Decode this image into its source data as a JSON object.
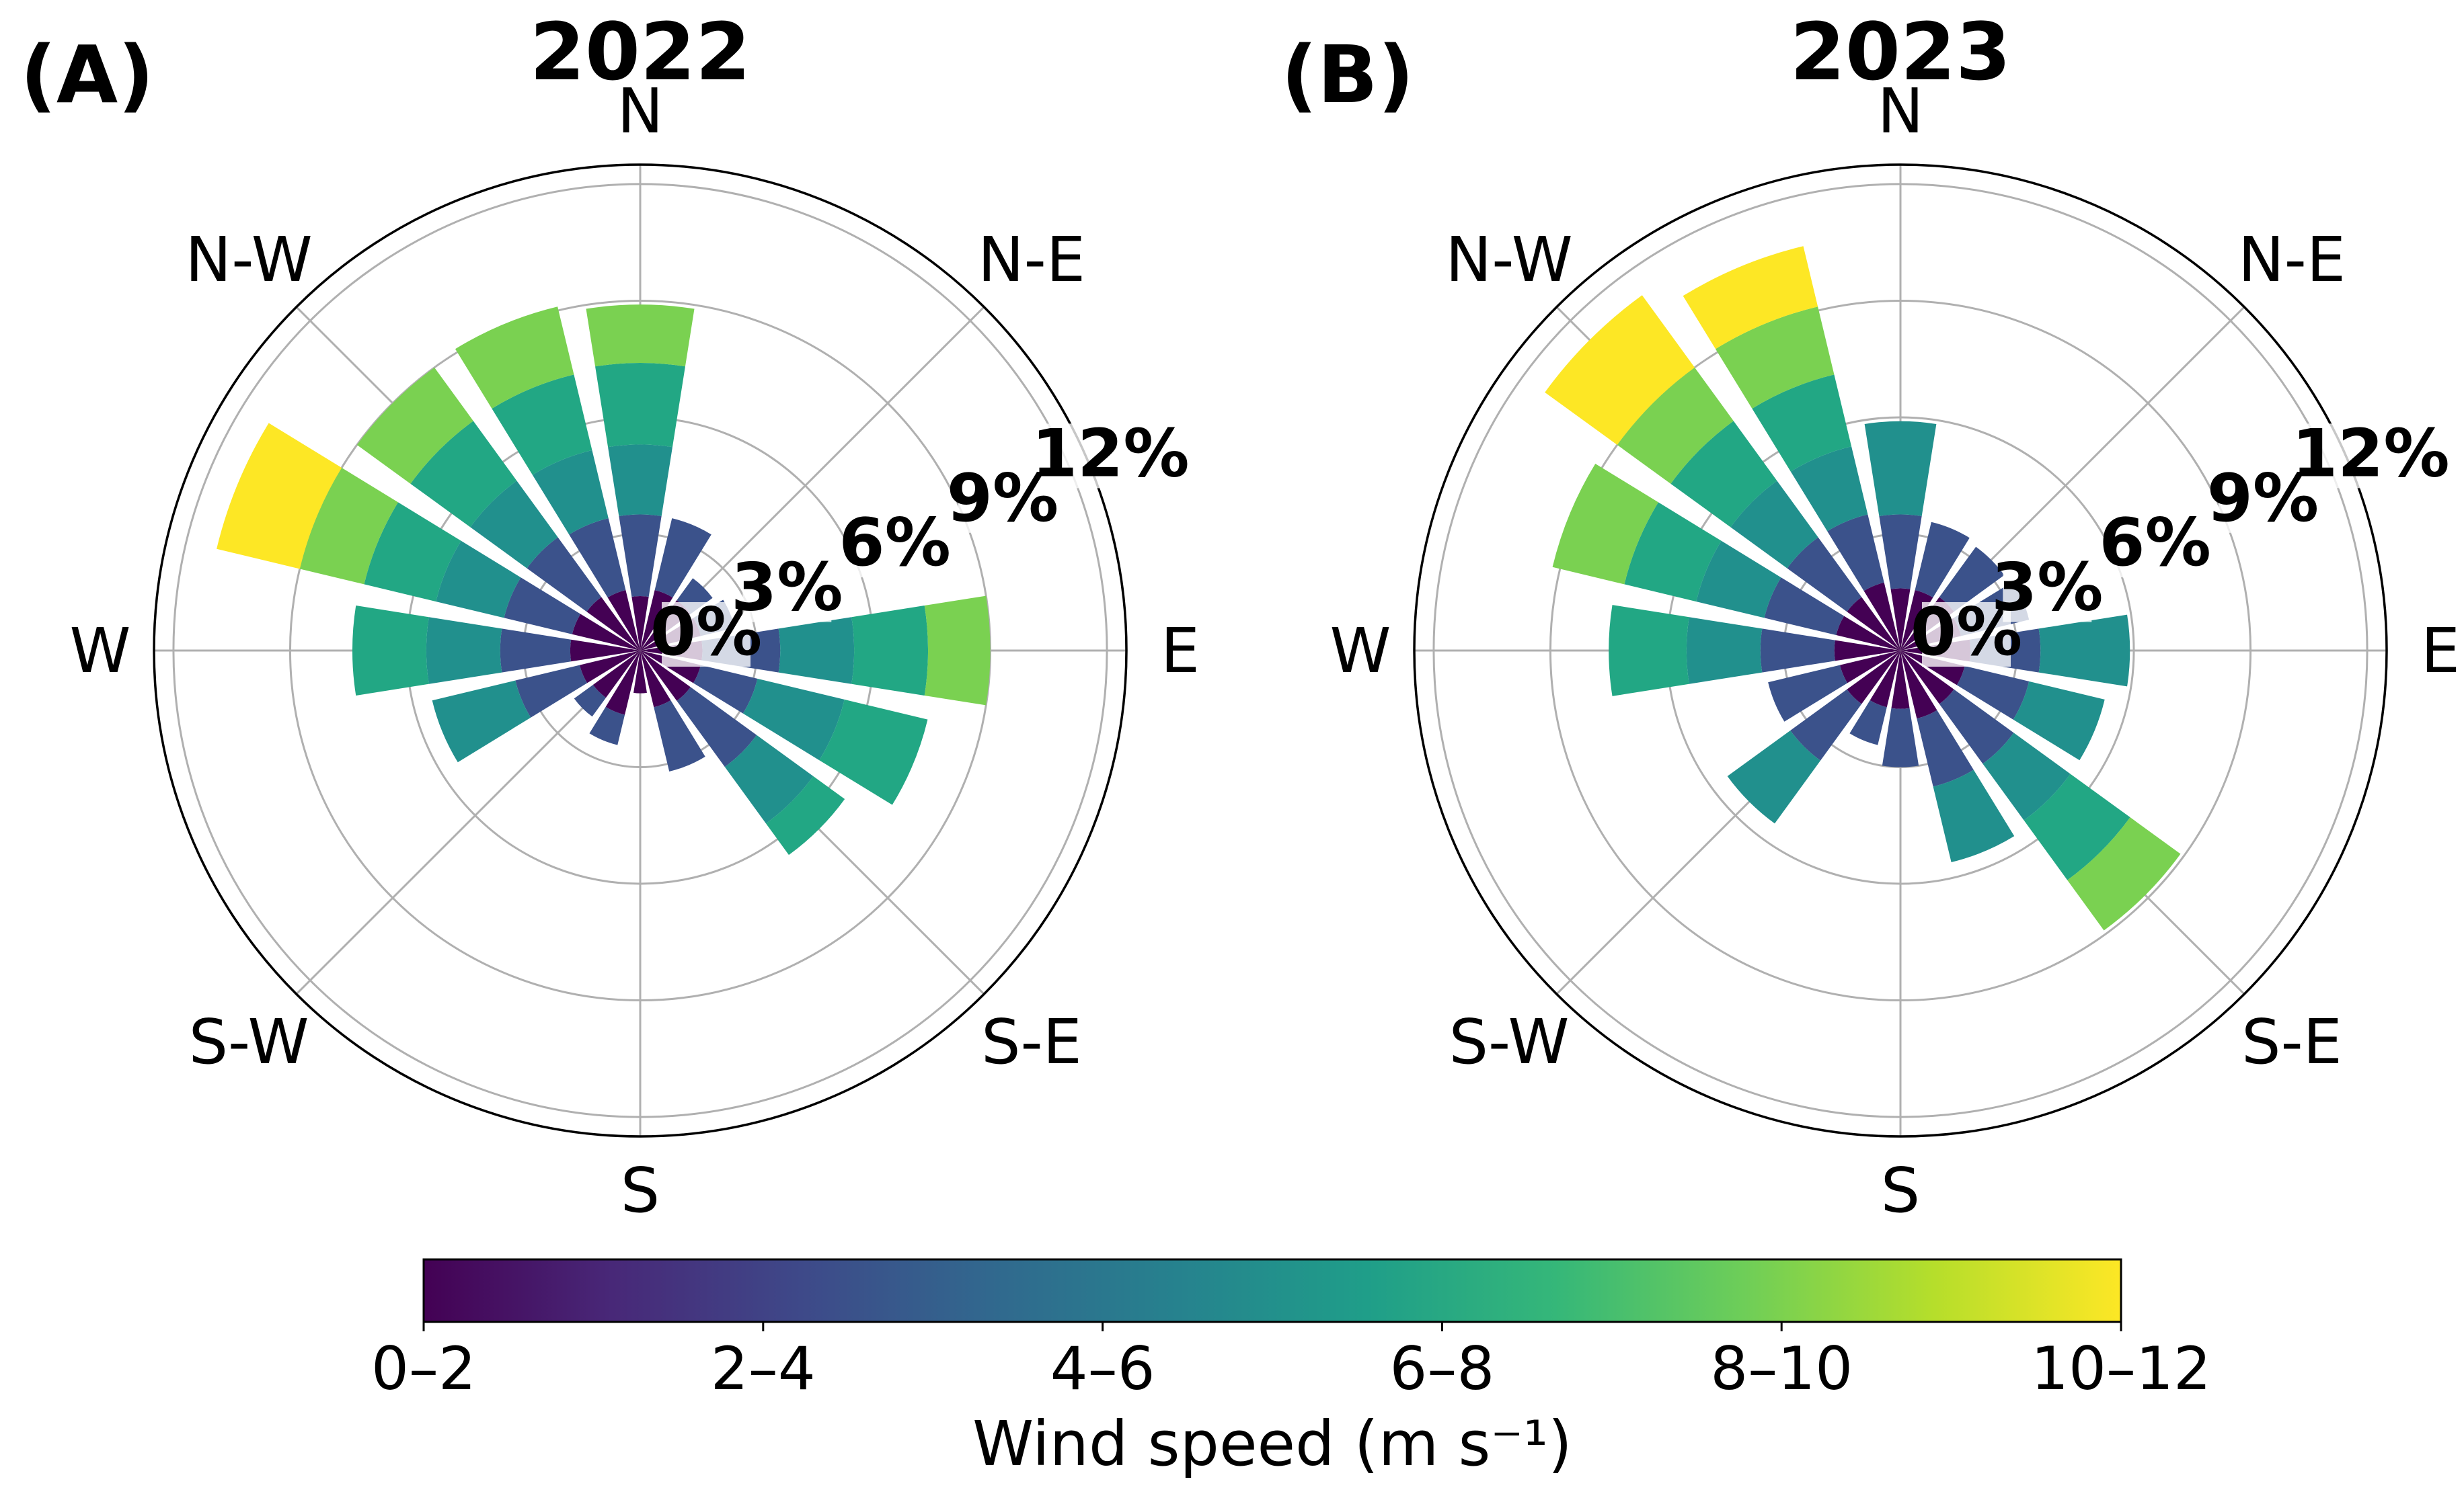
{
  "figure": {
    "colorbar": {
      "ticks": [
        "0–2",
        "2–4",
        "4–6",
        "6–8",
        "8–10",
        "10–12"
      ],
      "label": "Wind speed (m s⁻¹)"
    }
  },
  "colors": {
    "bins": [
      "#440154",
      "#3b528b",
      "#21908d",
      "#22a784",
      "#7ad151",
      "#fde725"
    ],
    "viridis_stops": [
      "#440154",
      "#482878",
      "#3e4989",
      "#31688e",
      "#26828e",
      "#1f9e89",
      "#35b779",
      "#6ece58",
      "#b5de2b",
      "#fde725"
    ]
  },
  "chart_data": [
    {
      "panel": "(A)",
      "title": "2022",
      "type": "windrose",
      "direction_labels": [
        "N",
        "N-E",
        "E",
        "S-E",
        "S",
        "S-W",
        "W",
        "N-W"
      ],
      "radial_ticks": [
        "0%",
        "3%",
        "6%",
        "9%",
        "12%"
      ],
      "rlim": [
        0,
        12.5
      ],
      "speed_bins": [
        "0–2",
        "2–4",
        "4–6",
        "6–8",
        "8–10",
        "10–12"
      ],
      "sectors_deg": [
        0,
        22.5,
        45,
        67.5,
        90,
        112.5,
        135,
        157.5,
        180,
        202.5,
        225,
        247.5,
        270,
        292.5,
        315,
        337.5
      ],
      "cumulative_pct": [
        [
          1.4,
          3.5,
          5.3,
          7.4,
          8.9,
          8.9
        ],
        [
          1.6,
          3.5,
          3.5,
          3.5,
          3.5,
          3.5
        ],
        [
          1.6,
          2.3,
          2.3,
          2.3,
          2.3,
          2.3
        ],
        [
          1.6,
          2.5,
          2.5,
          2.5,
          2.5,
          2.5
        ],
        [
          1.6,
          3.6,
          5.5,
          7.4,
          9.0,
          9.0
        ],
        [
          1.6,
          3.1,
          5.4,
          7.6,
          7.6,
          7.6
        ],
        [
          1.6,
          3.7,
          5.5,
          6.5,
          6.5,
          6.5
        ],
        [
          1.5,
          3.2,
          3.2,
          3.2,
          3.2,
          3.2
        ],
        [
          1.1,
          1.1,
          1.1,
          1.1,
          1.1,
          1.1
        ],
        [
          1.7,
          2.5,
          2.5,
          2.5,
          2.5,
          2.5
        ],
        [
          1.5,
          2.1,
          2.1,
          2.1,
          2.1,
          2.1
        ],
        [
          1.6,
          3.3,
          5.5,
          5.5,
          5.5,
          5.5
        ],
        [
          1.8,
          3.6,
          5.5,
          7.4,
          7.4,
          7.4
        ],
        [
          1.8,
          3.6,
          5.4,
          7.3,
          9.0,
          11.2
        ],
        [
          1.7,
          3.6,
          5.4,
          7.3,
          9.0,
          9.0
        ],
        [
          1.6,
          3.5,
          5.3,
          7.3,
          9.1,
          9.1
        ]
      ]
    },
    {
      "panel": "(B)",
      "title": "2023",
      "type": "windrose",
      "direction_labels": [
        "N",
        "N-E",
        "E",
        "S-E",
        "S",
        "S-W",
        "W",
        "N-W"
      ],
      "radial_ticks": [
        "0%",
        "3%",
        "6%",
        "9%",
        "12%"
      ],
      "rlim": [
        0,
        12.5
      ],
      "speed_bins": [
        "0–2",
        "2–4",
        "4–6",
        "6–8",
        "8–10",
        "10–12"
      ],
      "sectors_deg": [
        0,
        22.5,
        45,
        67.5,
        90,
        112.5,
        135,
        157.5,
        180,
        202.5,
        225,
        247.5,
        270,
        292.5,
        315,
        337.5
      ],
      "cumulative_pct": [
        [
          1.6,
          3.5,
          5.9,
          5.9,
          5.9,
          5.9
        ],
        [
          1.6,
          3.4,
          3.4,
          3.4,
          3.4,
          3.4
        ],
        [
          1.7,
          3.3,
          3.3,
          3.3,
          3.3,
          3.3
        ],
        [
          1.6,
          3.4,
          3.4,
          3.4,
          3.4,
          3.4
        ],
        [
          1.8,
          3.6,
          5.9,
          5.9,
          5.9,
          5.9
        ],
        [
          1.7,
          3.4,
          5.4,
          5.4,
          5.4,
          5.4
        ],
        [
          1.7,
          3.6,
          5.4,
          7.3,
          8.9,
          8.9
        ],
        [
          1.8,
          3.6,
          5.6,
          5.6,
          5.6,
          5.6
        ],
        [
          1.5,
          3.0,
          3.0,
          3.0,
          3.0,
          3.0
        ],
        [
          1.5,
          2.5,
          2.5,
          2.5,
          2.5,
          2.5
        ],
        [
          1.7,
          3.5,
          5.5,
          5.5,
          5.5,
          5.5
        ],
        [
          1.6,
          3.5,
          3.5,
          3.5,
          3.5,
          3.5
        ],
        [
          1.7,
          3.6,
          5.5,
          7.5,
          7.5,
          7.5
        ],
        [
          1.7,
          3.6,
          5.4,
          7.3,
          9.2,
          9.2
        ],
        [
          1.7,
          3.6,
          5.4,
          7.3,
          9.0,
          11.3
        ],
        [
          1.8,
          3.6,
          5.4,
          7.3,
          9.1,
          10.7
        ]
      ]
    }
  ]
}
